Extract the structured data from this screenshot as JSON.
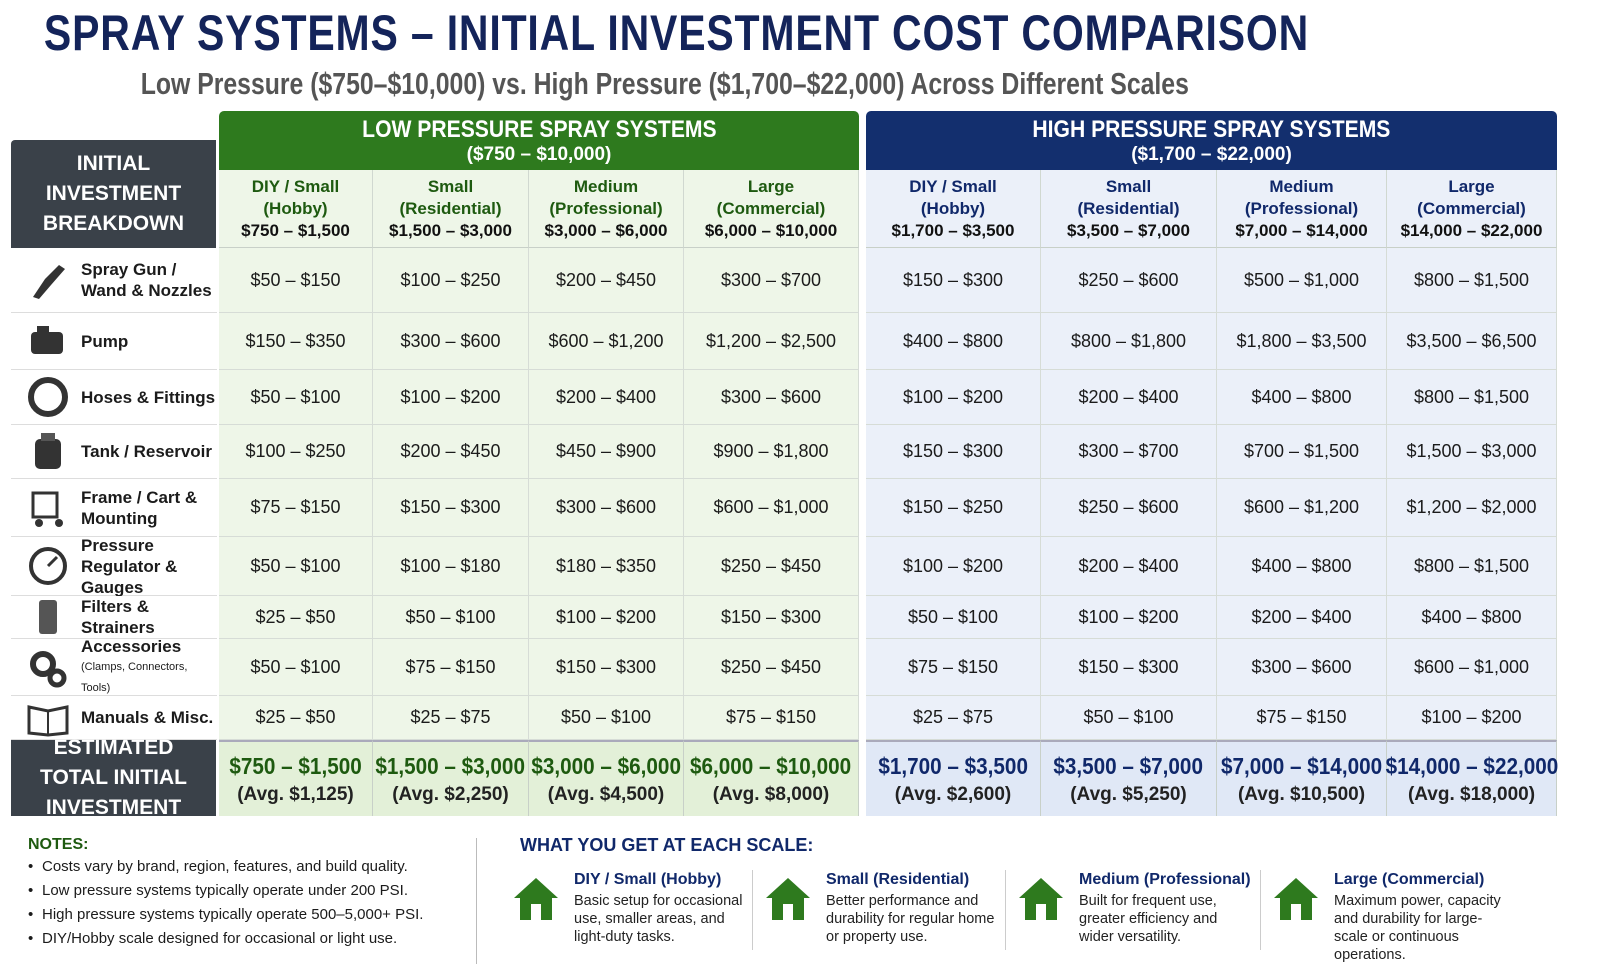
{
  "header": {
    "title": "SPRAY SYSTEMS – INITIAL INVESTMENT COST COMPARISON",
    "subtitle": "Low Pressure ($750–$10,000) vs. High Pressure ($1,700–$22,000) Across Different Scales"
  },
  "table": {
    "corner": "INITIAL INVESTMENT BREAKDOWN",
    "groups": [
      {
        "title": "LOW PRESSURE SPRAY SYSTEMS",
        "range": "($750 – $10,000)",
        "columns": [
          {
            "name": "DIY / Small",
            "sub": "(Hobby)",
            "range": "$750 – $1,500"
          },
          {
            "name": "Small",
            "sub": "(Residential)",
            "range": "$1,500 – $3,000"
          },
          {
            "name": "Medium",
            "sub": "(Professional)",
            "range": "$3,000 – $6,000"
          },
          {
            "name": "Large",
            "sub": "(Commercial)",
            "range": "$6,000 – $10,000"
          }
        ]
      },
      {
        "title": "HIGH PRESSURE SPRAY SYSTEMS",
        "range": "($1,700 – $22,000)",
        "columns": [
          {
            "name": "DIY / Small",
            "sub": "(Hobby)",
            "range": "$1,700 – $3,500"
          },
          {
            "name": "Small",
            "sub": "(Residential)",
            "range": "$3,500 – $7,000"
          },
          {
            "name": "Medium",
            "sub": "(Professional)",
            "range": "$7,000 – $14,000"
          },
          {
            "name": "Large",
            "sub": "(Commercial)",
            "range": "$14,000 – $22,000"
          }
        ]
      }
    ],
    "rows": [
      {
        "label": "Spray Gun / Wand & Nozzles",
        "cells": [
          "$50 – $150",
          "$100 – $250",
          "$200 – $450",
          "$300 – $700",
          "$150 – $300",
          "$250 – $600",
          "$500 – $1,000",
          "$800 – $1,500"
        ]
      },
      {
        "label": "Pump",
        "cells": [
          "$150 – $350",
          "$300 – $600",
          "$600 – $1,200",
          "$1,200 – $2,500",
          "$400 – $800",
          "$800 – $1,800",
          "$1,800 – $3,500",
          "$3,500 – $6,500"
        ]
      },
      {
        "label": "Hoses & Fittings",
        "cells": [
          "$50 – $100",
          "$100 – $200",
          "$200 – $400",
          "$300 – $600",
          "$100 – $200",
          "$200 – $400",
          "$400 – $800",
          "$800 – $1,500"
        ]
      },
      {
        "label": "Tank / Reservoir",
        "cells": [
          "$100 – $250",
          "$200 – $450",
          "$450 – $900",
          "$900 – $1,800",
          "$150 – $300",
          "$300 – $700",
          "$700 – $1,500",
          "$1,500 – $3,000"
        ]
      },
      {
        "label": "Frame / Cart & Mounting",
        "cells": [
          "$75 – $150",
          "$150 – $300",
          "$300 – $600",
          "$600 – $1,000",
          "$150 – $250",
          "$250 – $600",
          "$600 – $1,200",
          "$1,200 – $2,000"
        ]
      },
      {
        "label": "Pressure Regulator & Gauges",
        "cells": [
          "$50 – $100",
          "$100 – $180",
          "$180 – $350",
          "$250 – $450",
          "$100 – $200",
          "$200 – $400",
          "$400 – $800",
          "$800 – $1,500"
        ]
      },
      {
        "label": "Filters & Strainers",
        "cells": [
          "$25 – $50",
          "$50 – $100",
          "$100 – $200",
          "$150 – $300",
          "$50 – $100",
          "$100 – $200",
          "$200 – $400",
          "$400 – $800"
        ]
      },
      {
        "label": "Accessories",
        "note": "(Clamps, Connectors, Tools)",
        "cells": [
          "$50 – $100",
          "$75 – $150",
          "$150 – $300",
          "$250 – $450",
          "$75 – $150",
          "$150 – $300",
          "$300 – $600",
          "$600 – $1,000"
        ]
      },
      {
        "label": "Manuals & Misc.",
        "cells": [
          "$25 – $50",
          "$25 – $75",
          "$50 – $100",
          "$75 – $150",
          "$25 – $75",
          "$50 – $100",
          "$75 – $150",
          "$100 – $200"
        ]
      }
    ],
    "total": {
      "label": "ESTIMATED TOTAL INITIAL INVESTMENT",
      "cells": [
        {
          "range": "$750 – $1,500",
          "avg": "(Avg. $1,125)"
        },
        {
          "range": "$1,500 – $3,000",
          "avg": "(Avg. $2,250)"
        },
        {
          "range": "$3,000 – $6,000",
          "avg": "(Avg. $4,500)"
        },
        {
          "range": "$6,000 – $10,000",
          "avg": "(Avg. $8,000)"
        },
        {
          "range": "$1,700 – $3,500",
          "avg": "(Avg. $2,600)"
        },
        {
          "range": "$3,500 – $7,000",
          "avg": "(Avg. $5,250)"
        },
        {
          "range": "$7,000 – $14,000",
          "avg": "(Avg. $10,500)"
        },
        {
          "range": "$14,000 – $22,000",
          "avg": "(Avg. $18,000)"
        }
      ]
    }
  },
  "notes": {
    "title": "NOTES:",
    "items": [
      "Costs vary by brand, region, features, and build quality.",
      "Low pressure systems typically operate under 200 PSI.",
      "High pressure systems typically operate 500–5,000+ PSI.",
      "DIY/Hobby scale designed for occasional or light use."
    ]
  },
  "scales": {
    "title": "WHAT YOU GET AT EACH SCALE:",
    "items": [
      {
        "name": "DIY / Small (Hobby)",
        "text": "Basic setup for occasional use, smaller areas, and light-duty tasks."
      },
      {
        "name": "Small (Residential)",
        "text": "Better performance and durability for regular home or property use."
      },
      {
        "name": "Medium (Professional)",
        "text": "Built for frequent use, greater efficiency and wider versatility."
      },
      {
        "name": "Large (Commercial)",
        "text": "Maximum power, capacity and durability for large-scale or continuous operations."
      }
    ]
  }
}
